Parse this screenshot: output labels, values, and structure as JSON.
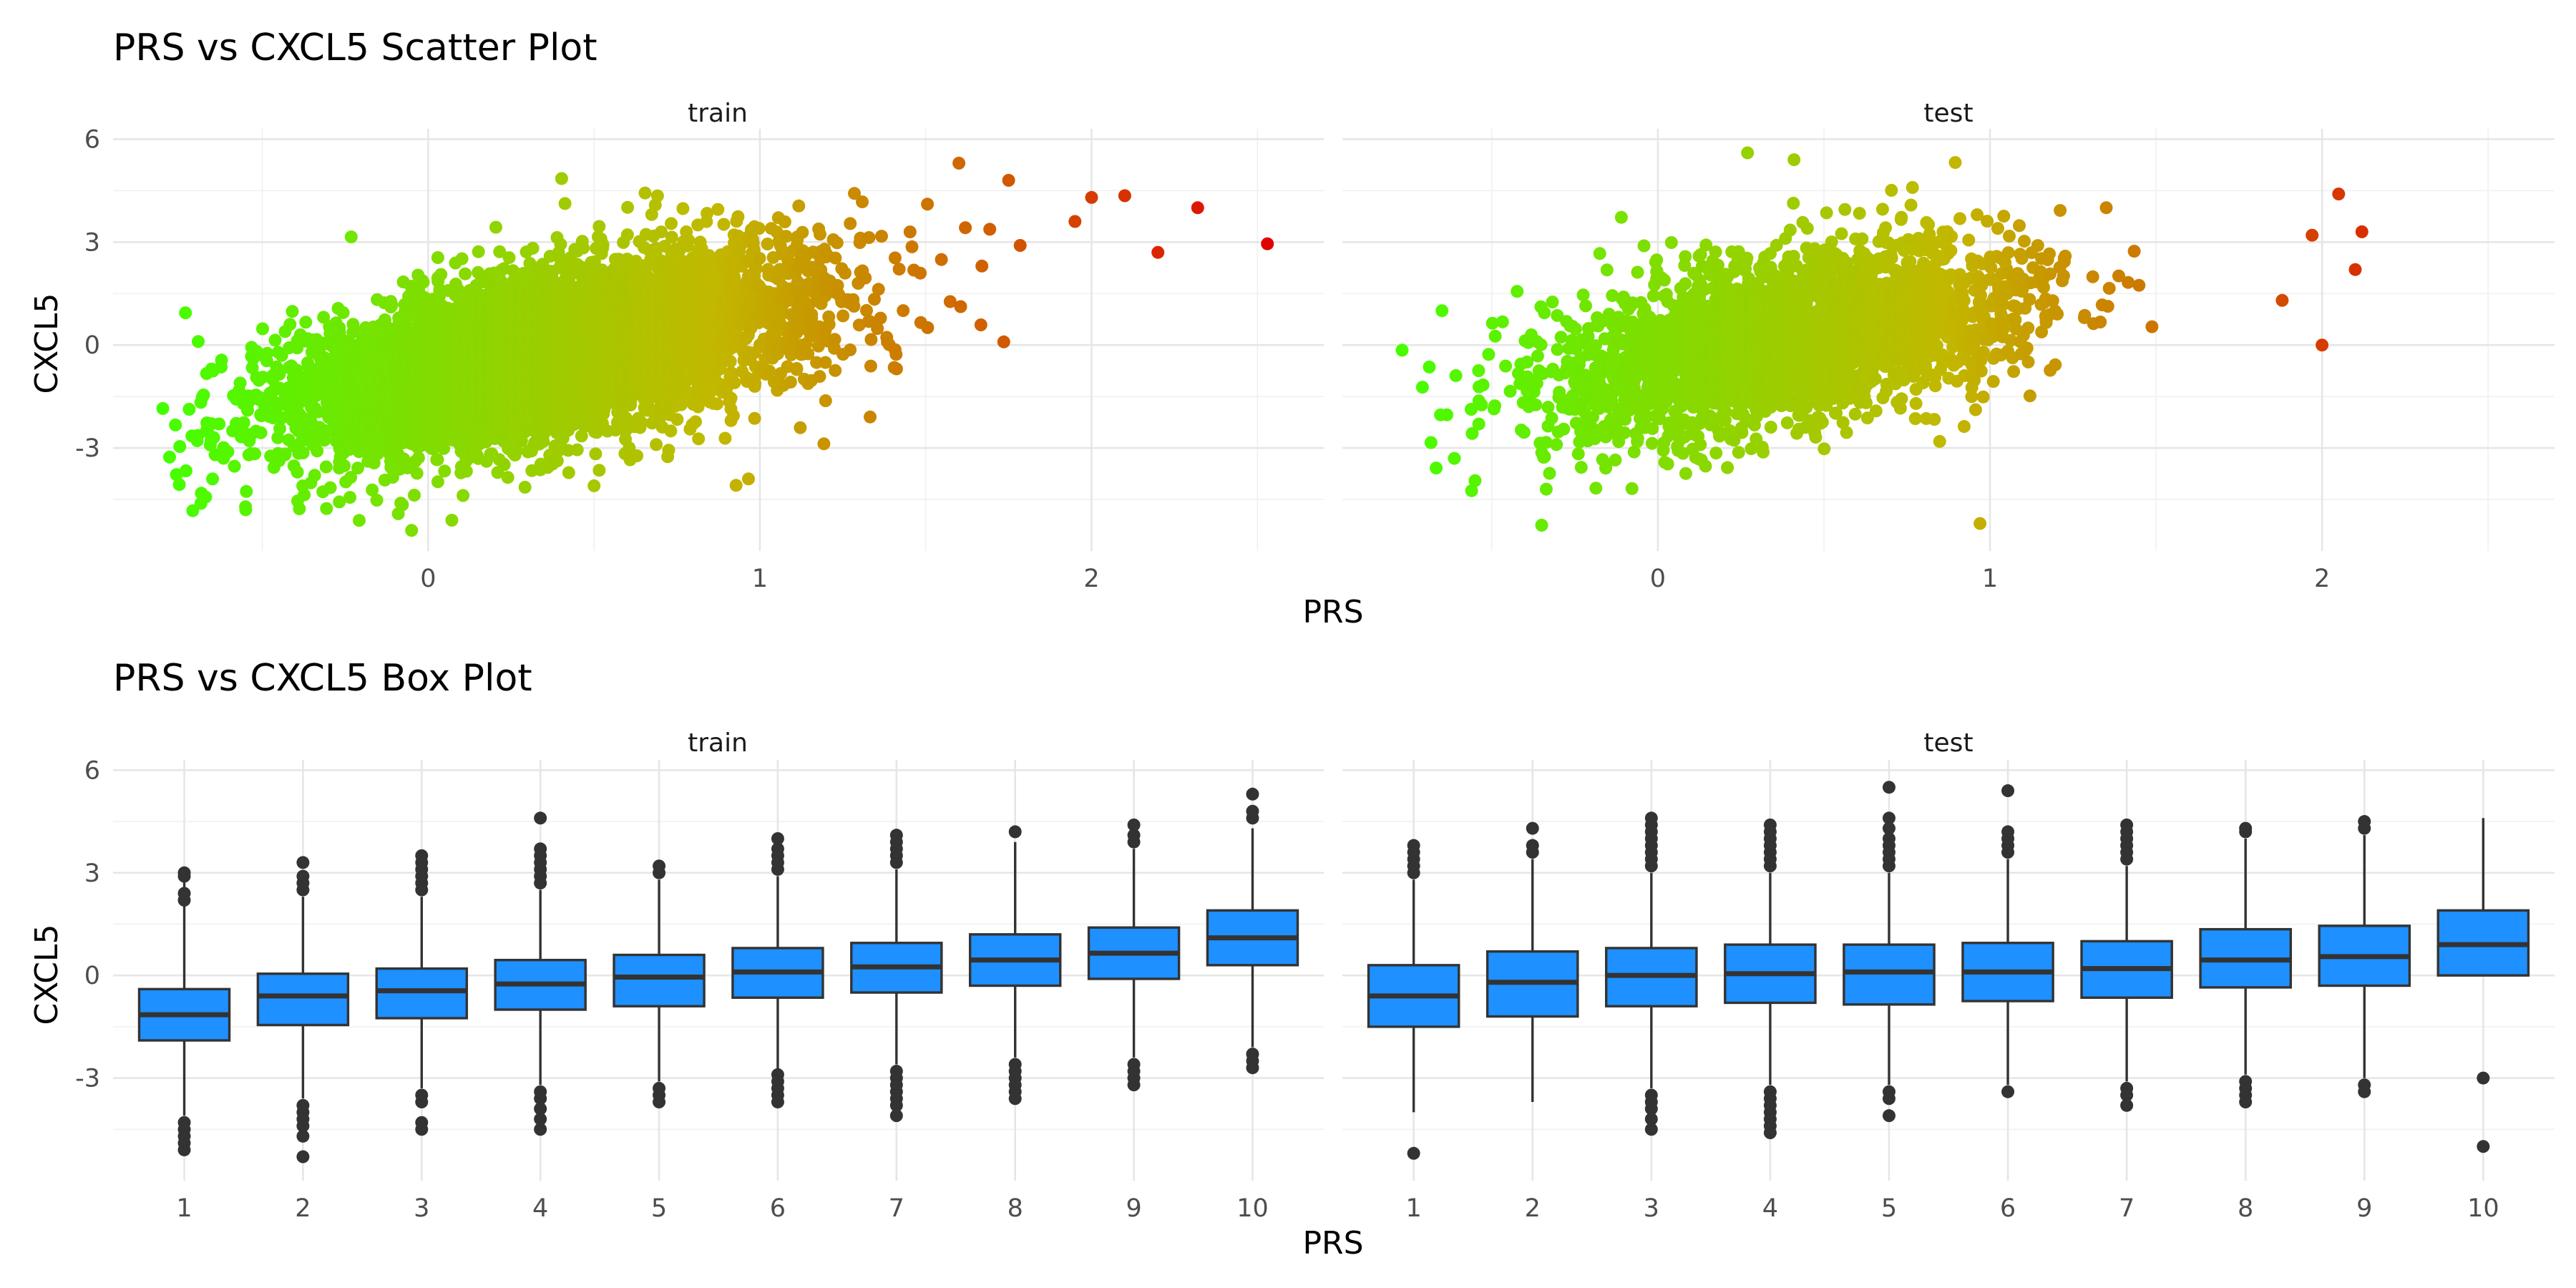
{
  "chart_data": [
    {
      "type": "scatter",
      "title": "PRS vs CXCL5 Scatter Plot",
      "xlabel": "PRS",
      "ylabel": "CXCL5",
      "xlim": [
        -0.95,
        2.7
      ],
      "ylim": [
        -6,
        6.3
      ],
      "xticks": [
        "0",
        "1",
        "2"
      ],
      "xtick_values": [
        0,
        1,
        2
      ],
      "yticks": [
        "-3",
        "0",
        "3",
        "6"
      ],
      "ytick_values": [
        -3,
        0,
        3,
        6
      ],
      "grid": true,
      "color_scale": {
        "low": "#44ff00",
        "mid": "#c2b800",
        "high": "#e00000",
        "domain": [
          -0.8,
          2.55
        ]
      },
      "facets": [
        {
          "label": "train",
          "n_points": 6000,
          "trend": {
            "intercept": -0.9,
            "slope": 1.9,
            "sd": 1.2
          },
          "x_mean": 0.35,
          "x_sd": 0.38,
          "extremes": [
            [
              2.53,
              2.95
            ],
            [
              2.32,
              4.0
            ],
            [
              2.2,
              2.7
            ],
            [
              2.1,
              4.35
            ],
            [
              2.0,
              4.3
            ],
            [
              1.95,
              3.6
            ],
            [
              -0.8,
              -1.85
            ],
            [
              -0.65,
              -3.9
            ],
            [
              -0.55,
              -4.8
            ],
            [
              -0.05,
              -5.4
            ],
            [
              0.5,
              -4.1
            ],
            [
              1.6,
              5.3
            ],
            [
              1.75,
              4.8
            ]
          ]
        },
        {
          "label": "test",
          "n_points": 2800,
          "trend": {
            "intercept": -0.55,
            "slope": 1.85,
            "sd": 1.2
          },
          "x_mean": 0.38,
          "x_sd": 0.36,
          "extremes": [
            [
              2.12,
              3.3
            ],
            [
              2.1,
              2.2
            ],
            [
              2.05,
              4.4
            ],
            [
              2.0,
              0.0
            ],
            [
              1.97,
              3.2
            ],
            [
              1.88,
              1.3
            ],
            [
              -0.77,
              -0.15
            ],
            [
              -0.65,
              1.0
            ],
            [
              -0.35,
              -5.25
            ],
            [
              0.97,
              -5.2
            ],
            [
              0.27,
              5.6
            ],
            [
              0.41,
              5.4
            ],
            [
              1.35,
              4.0
            ]
          ]
        }
      ]
    },
    {
      "type": "box",
      "title": "PRS vs CXCL5 Box Plot",
      "xlabel": "PRS",
      "ylabel": "CXCL5",
      "categories": [
        "1",
        "2",
        "3",
        "4",
        "5",
        "6",
        "7",
        "8",
        "9",
        "10"
      ],
      "ylim": [
        -6,
        6.3
      ],
      "yticks": [
        "-3",
        "0",
        "3",
        "6"
      ],
      "ytick_values": [
        -3,
        0,
        3,
        6
      ],
      "grid": true,
      "box_color": "#1e90ff",
      "outline_color": "#333333",
      "facets": [
        {
          "label": "train",
          "boxes": [
            {
              "q1": -1.9,
              "median": -1.15,
              "q3": -0.4,
              "wlow": -4.1,
              "whigh": 2.8,
              "out_low": [
                -4.3,
                -4.5,
                -4.7,
                -4.9,
                -5.1
              ],
              "out_high": [
                2.9,
                3.0,
                2.4,
                2.2
              ]
            },
            {
              "q1": -1.45,
              "median": -0.6,
              "q3": 0.05,
              "wlow": -3.6,
              "whigh": 2.3,
              "out_low": [
                -3.8,
                -4.0,
                -4.2,
                -4.4,
                -4.7,
                -5.3
              ],
              "out_high": [
                2.5,
                2.7,
                2.9,
                3.3
              ]
            },
            {
              "q1": -1.25,
              "median": -0.45,
              "q3": 0.2,
              "wlow": -3.3,
              "whigh": 2.3,
              "out_low": [
                -3.5,
                -3.7,
                -4.3,
                -4.5
              ],
              "out_high": [
                2.5,
                2.7,
                2.9,
                3.1,
                3.3,
                3.5
              ]
            },
            {
              "q1": -1.0,
              "median": -0.25,
              "q3": 0.45,
              "wlow": -3.2,
              "whigh": 2.5,
              "out_low": [
                -3.4,
                -3.6,
                -3.9,
                -4.2,
                -4.5
              ],
              "out_high": [
                2.7,
                2.9,
                3.1,
                3.3,
                3.5,
                3.7,
                4.6
              ]
            },
            {
              "q1": -0.9,
              "median": -0.05,
              "q3": 0.6,
              "wlow": -3.1,
              "whigh": 2.8,
              "out_low": [
                -3.3,
                -3.5,
                -3.7
              ],
              "out_high": [
                3.0,
                3.2
              ]
            },
            {
              "q1": -0.65,
              "median": 0.1,
              "q3": 0.8,
              "wlow": -2.8,
              "whigh": 2.9,
              "out_low": [
                -2.9,
                -3.1,
                -3.3,
                -3.5,
                -3.7
              ],
              "out_high": [
                3.1,
                3.3,
                3.5,
                3.7,
                4.0
              ]
            },
            {
              "q1": -0.5,
              "median": 0.25,
              "q3": 0.95,
              "wlow": -2.6,
              "whigh": 3.1,
              "out_low": [
                -2.8,
                -3.0,
                -3.2,
                -3.4,
                -3.6,
                -3.8,
                -4.1
              ],
              "out_high": [
                3.3,
                3.5,
                3.7,
                3.9,
                4.1
              ]
            },
            {
              "q1": -0.3,
              "median": 0.45,
              "q3": 1.2,
              "wlow": -2.4,
              "whigh": 3.9,
              "out_low": [
                -2.6,
                -2.8,
                -3.0,
                -3.2,
                -3.4,
                -3.6
              ],
              "out_high": [
                4.2
              ]
            },
            {
              "q1": -0.1,
              "median": 0.65,
              "q3": 1.4,
              "wlow": -2.4,
              "whigh": 3.7,
              "out_low": [
                -2.6,
                -2.8,
                -3.0,
                -3.2
              ],
              "out_high": [
                3.9,
                4.1,
                4.4
              ]
            },
            {
              "q1": 0.3,
              "median": 1.1,
              "q3": 1.9,
              "wlow": -2.1,
              "whigh": 4.3,
              "out_low": [
                -2.3,
                -2.5,
                -2.7
              ],
              "out_high": [
                4.6,
                4.8,
                5.3
              ]
            }
          ]
        },
        {
          "label": "test",
          "boxes": [
            {
              "q1": -1.5,
              "median": -0.6,
              "q3": 0.3,
              "wlow": -4.0,
              "whigh": 2.8,
              "out_low": [
                -5.2
              ],
              "out_high": [
                3.0,
                3.2,
                3.4,
                3.6,
                3.8
              ]
            },
            {
              "q1": -1.2,
              "median": -0.2,
              "q3": 0.7,
              "wlow": -3.7,
              "whigh": 3.4,
              "out_low": [],
              "out_high": [
                3.6,
                3.8,
                4.3
              ]
            },
            {
              "q1": -0.9,
              "median": 0.0,
              "q3": 0.8,
              "wlow": -3.3,
              "whigh": 3.0,
              "out_low": [
                -3.5,
                -3.7,
                -3.9,
                -4.2,
                -4.5
              ],
              "out_high": [
                3.2,
                3.4,
                3.6,
                3.8,
                4.0,
                4.2,
                4.4,
                4.6
              ]
            },
            {
              "q1": -0.8,
              "median": 0.05,
              "q3": 0.9,
              "wlow": -3.2,
              "whigh": 3.0,
              "out_low": [
                -3.4,
                -3.6,
                -3.8,
                -4.0,
                -4.2,
                -4.4,
                -4.6
              ],
              "out_high": [
                3.2,
                3.4,
                3.6,
                3.8,
                4.0,
                4.2,
                4.4
              ]
            },
            {
              "q1": -0.85,
              "median": 0.1,
              "q3": 0.9,
              "wlow": -3.2,
              "whigh": 3.0,
              "out_low": [
                -3.4,
                -3.6,
                -4.1
              ],
              "out_high": [
                3.2,
                3.4,
                3.6,
                3.8,
                4.0,
                4.3,
                4.6,
                5.5
              ]
            },
            {
              "q1": -0.75,
              "median": 0.1,
              "q3": 0.95,
              "wlow": -3.2,
              "whigh": 3.4,
              "out_low": [
                -3.4
              ],
              "out_high": [
                3.6,
                3.8,
                4.0,
                4.2,
                5.4
              ]
            },
            {
              "q1": -0.65,
              "median": 0.2,
              "q3": 1.0,
              "wlow": -3.1,
              "whigh": 3.2,
              "out_low": [
                -3.3,
                -3.5,
                -3.8
              ],
              "out_high": [
                3.4,
                3.6,
                3.8,
                4.0,
                4.2,
                4.4
              ]
            },
            {
              "q1": -0.35,
              "median": 0.45,
              "q3": 1.35,
              "wlow": -2.9,
              "whigh": 4.0,
              "out_low": [
                -3.1,
                -3.3,
                -3.5,
                -3.7
              ],
              "out_high": [
                4.2,
                4.3
              ]
            },
            {
              "q1": -0.3,
              "median": 0.55,
              "q3": 1.45,
              "wlow": -3.0,
              "whigh": 4.1,
              "out_low": [
                -3.2,
                -3.4
              ],
              "out_high": [
                4.3,
                4.5
              ]
            },
            {
              "q1": 0.0,
              "median": 0.9,
              "q3": 1.9,
              "wlow": -0.0,
              "whigh": 4.6,
              "out_low": [
                -3.0,
                -5.0
              ],
              "out_high": []
            }
          ]
        }
      ]
    }
  ]
}
